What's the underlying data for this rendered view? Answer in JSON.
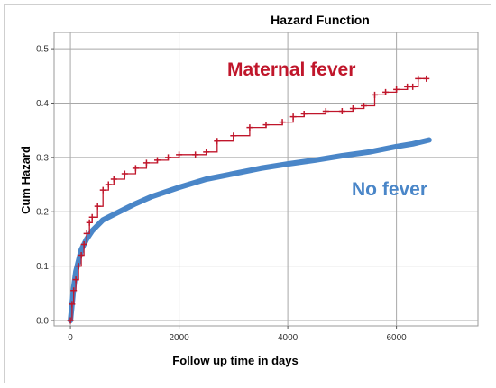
{
  "chart_data": {
    "type": "line",
    "title": "Hazard Function",
    "xlabel": "Follow up time in days",
    "ylabel": "Cum Hazard",
    "xlim": [
      -300,
      7500
    ],
    "ylim": [
      -0.01,
      0.53
    ],
    "xticks": [
      0,
      2000,
      4000,
      6000
    ],
    "yticks": [
      0.0,
      0.1,
      0.2,
      0.3,
      0.4,
      0.5
    ],
    "xtick_labels": [
      "0",
      "2000",
      "4000",
      "6000"
    ],
    "ytick_labels": [
      "0.0",
      "0.1",
      "0.2",
      "0.3",
      "0.4",
      "0.5"
    ],
    "grid": true,
    "series": [
      {
        "name": "Maternal fever",
        "color": "#c0162b",
        "censor_marks": true,
        "x": [
          0,
          30,
          60,
          100,
          150,
          200,
          250,
          300,
          350,
          400,
          500,
          600,
          700,
          800,
          1000,
          1200,
          1400,
          1600,
          1800,
          2000,
          2300,
          2500,
          2700,
          3000,
          3300,
          3600,
          3900,
          4100,
          4300,
          4700,
          5000,
          5200,
          5400,
          5600,
          5800,
          6000,
          6200,
          6300,
          6400,
          6550
        ],
        "y": [
          0.0,
          0.03,
          0.055,
          0.075,
          0.1,
          0.12,
          0.14,
          0.16,
          0.18,
          0.19,
          0.21,
          0.24,
          0.25,
          0.26,
          0.27,
          0.28,
          0.29,
          0.295,
          0.3,
          0.305,
          0.305,
          0.31,
          0.33,
          0.34,
          0.355,
          0.36,
          0.365,
          0.375,
          0.38,
          0.385,
          0.385,
          0.39,
          0.395,
          0.415,
          0.42,
          0.425,
          0.43,
          0.43,
          0.445,
          0.445
        ]
      },
      {
        "name": "No fever",
        "color": "#4a86c8",
        "x": [
          0,
          30,
          60,
          100,
          150,
          200,
          300,
          400,
          500,
          600,
          800,
          1000,
          1200,
          1500,
          2000,
          2500,
          3000,
          3500,
          4000,
          4500,
          5000,
          5500,
          6000,
          6300,
          6600
        ],
        "y": [
          0.0,
          0.03,
          0.06,
          0.09,
          0.11,
          0.13,
          0.15,
          0.165,
          0.175,
          0.185,
          0.195,
          0.205,
          0.215,
          0.228,
          0.245,
          0.26,
          0.27,
          0.28,
          0.288,
          0.295,
          0.303,
          0.31,
          0.32,
          0.325,
          0.332
        ]
      }
    ]
  }
}
